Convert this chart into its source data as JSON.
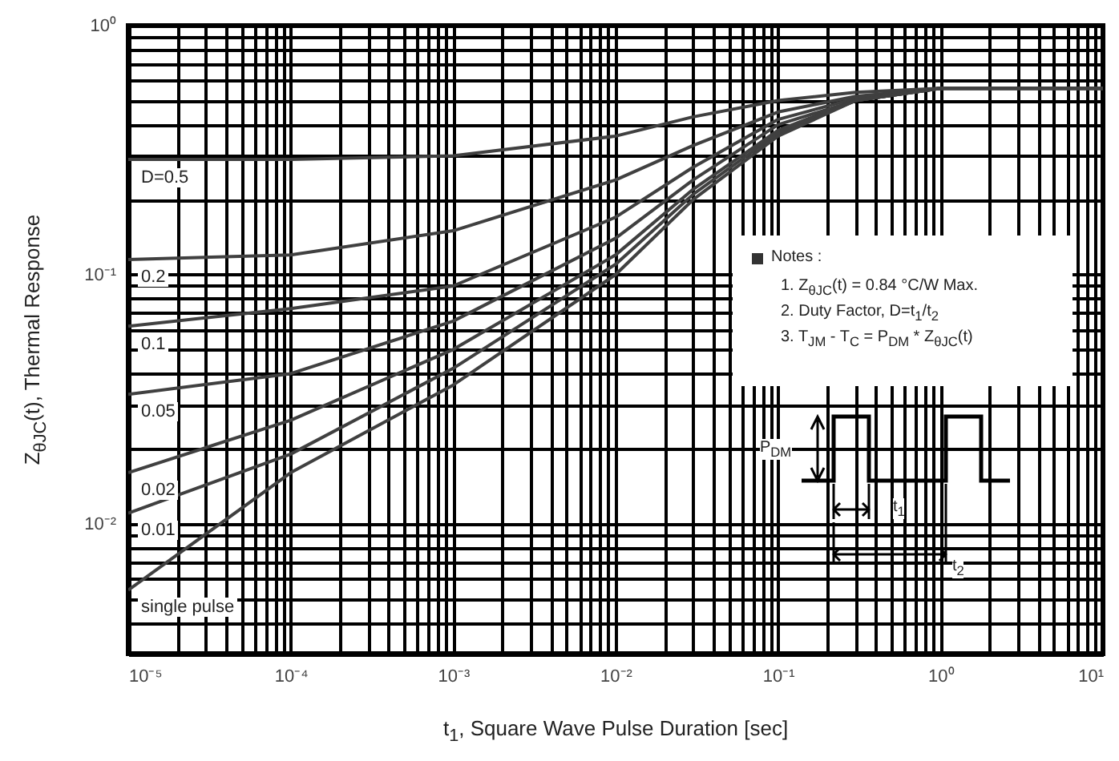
{
  "chart_data": {
    "type": "line",
    "xlabel": "t$_{1}$, Square Wave Pulse Duration [sec]",
    "ylabel": "Z$_{θJC}$(t), Thermal Response",
    "log": "xy",
    "grid": true,
    "legend": false,
    "line_style": "solid",
    "marker": "none",
    "xlim": [
      1e-05,
      10
    ],
    "ylim": [
      0.003,
      1
    ],
    "xticks": [
      {
        "value": 1e-05,
        "label": "10⁻⁵"
      },
      {
        "value": 0.0001,
        "label": "10⁻⁴"
      },
      {
        "value": 0.001,
        "label": "10⁻³"
      },
      {
        "value": 0.01,
        "label": "10⁻²"
      },
      {
        "value": 0.1,
        "label": "10⁻¹"
      },
      {
        "value": 1,
        "label": "10⁰"
      },
      {
        "value": 10,
        "label": "10¹"
      }
    ],
    "yticks": [
      {
        "value": 0.01,
        "label": "10⁻²"
      },
      {
        "value": 0.1,
        "label": "10⁻¹"
      },
      {
        "value": 1,
        "label": "10⁰"
      }
    ],
    "x": [
      1e-05,
      0.0001,
      0.001,
      0.01,
      0.03,
      0.1,
      0.3,
      1,
      10
    ],
    "series": [
      {
        "name": "D=0.5",
        "color": "#404040",
        "values": [
          0.29,
          0.29,
          0.3,
          0.36,
          0.43,
          0.5,
          0.54,
          0.56,
          0.56
        ]
      },
      {
        "name": "0.2",
        "color": "#404040",
        "values": [
          0.115,
          0.12,
          0.15,
          0.24,
          0.33,
          0.45,
          0.52,
          0.56,
          0.56
        ]
      },
      {
        "name": "0.1",
        "color": "#404040",
        "values": [
          0.062,
          0.073,
          0.09,
          0.17,
          0.27,
          0.42,
          0.51,
          0.56,
          0.56
        ]
      },
      {
        "name": "0.05",
        "color": "#404040",
        "values": [
          0.033,
          0.04,
          0.065,
          0.14,
          0.24,
          0.4,
          0.5,
          0.56,
          0.56
        ]
      },
      {
        "name": "0.02",
        "color": "#404040",
        "values": [
          0.016,
          0.026,
          0.05,
          0.12,
          0.22,
          0.38,
          0.5,
          0.56,
          0.56
        ]
      },
      {
        "name": "0.01",
        "color": "#404040",
        "values": [
          0.011,
          0.019,
          0.042,
          0.11,
          0.21,
          0.37,
          0.5,
          0.56,
          0.56
        ]
      },
      {
        "name": "single pulse",
        "color": "#404040",
        "values": [
          0.0054,
          0.016,
          0.036,
          0.1,
          0.2,
          0.36,
          0.5,
          0.56,
          0.56
        ]
      }
    ],
    "annotations": [
      "Notes :",
      "1. Z$_{θJC}$(t) = 0.84 °C/W Max.",
      "2. Duty Factor, D=t$_{1}$/t$_{2}$",
      "3. T$_{JM}$ - T$_{C}$ = P$_{DM}$ * Z$_{θJC}$(t)",
      "P$_{DM}$",
      "t$_{1}$",
      "t$_{2}$"
    ]
  }
}
